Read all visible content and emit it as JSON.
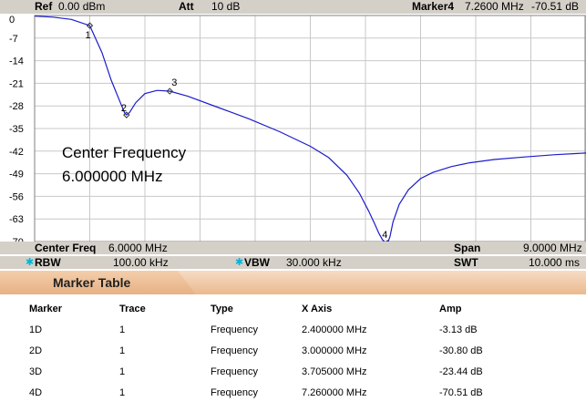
{
  "header": {
    "ref_label": "Ref",
    "ref_value": "0.00 dBm",
    "att_label": "Att",
    "att_value": "10 dB",
    "marker_label": "Marker4",
    "marker_freq": "7.2600 MHz",
    "marker_amp": "-70.51 dB"
  },
  "chart_data": {
    "type": "line",
    "y_ticks": [
      "0",
      "-7",
      "-14",
      "-21",
      "-28",
      "-35",
      "-42",
      "-49",
      "-56",
      "-63",
      "-70"
    ],
    "ylim": [
      -70,
      0
    ],
    "xlim": [
      1.5,
      10.5
    ],
    "x_unit": "MHz",
    "grid": true,
    "series": [
      {
        "color": "#1c1ccc",
        "x": [
          1.5,
          1.8,
          2.1,
          2.4,
          2.6,
          2.75,
          2.9,
          2.97,
          3.0,
          3.05,
          3.15,
          3.3,
          3.5,
          3.705,
          4.0,
          4.5,
          5.0,
          5.5,
          6.0,
          6.3,
          6.6,
          6.8,
          6.95,
          7.05,
          7.12,
          7.18,
          7.22,
          7.26,
          7.3,
          7.35,
          7.45,
          7.6,
          7.8,
          8.0,
          8.3,
          8.6,
          9.0,
          9.5,
          10.0,
          10.5
        ],
        "y": [
          -0.2,
          -0.5,
          -1.2,
          -3.13,
          -11.5,
          -20,
          -27,
          -30.2,
          -30.8,
          -30,
          -27,
          -24.2,
          -23.2,
          -23.44,
          -25,
          -28.5,
          -32,
          -36,
          -40.5,
          -44,
          -49.5,
          -55,
          -60.5,
          -64.5,
          -67.5,
          -69.5,
          -70.2,
          -70.51,
          -68.5,
          -64,
          -58.5,
          -54,
          -50.5,
          -48.6,
          -46.8,
          -45.6,
          -44.6,
          -43.8,
          -43.1,
          -42.6
        ]
      }
    ],
    "markers": [
      {
        "label": "1",
        "x": 2.4,
        "y": -3.13
      },
      {
        "label": "2",
        "x": 3.0,
        "y": -30.8
      },
      {
        "label": "3",
        "x": 3.705,
        "y": -23.44
      },
      {
        "label": "4",
        "x": 7.26,
        "y": -70.51
      }
    ],
    "annotation": {
      "line1": "Center Frequency",
      "line2": "6.000000 MHz"
    }
  },
  "info": {
    "center_label": "Center Freq",
    "center_value": "6.0000 MHz",
    "span_label": "Span",
    "span_value": "9.0000 MHz",
    "rbw_label": "RBW",
    "rbw_value": "100.00 kHz",
    "vbw_label": "VBW",
    "vbw_value": "30.000 kHz",
    "swt_label": "SWT",
    "swt_value": "10.000 ms",
    "dot_symbol": "✱"
  },
  "marker_table": {
    "title": "Marker Table",
    "columns": [
      "Marker",
      "Trace",
      "Type",
      "X Axis",
      "Amp"
    ],
    "rows": [
      [
        "1D",
        "1",
        "Frequency",
        "2.400000 MHz",
        "-3.13 dB"
      ],
      [
        "2D",
        "1",
        "Frequency",
        "3.000000 MHz",
        "-30.80 dB"
      ],
      [
        "3D",
        "1",
        "Frequency",
        "3.705000 MHz",
        "-23.44 dB"
      ],
      [
        "4D",
        "1",
        "Frequency",
        "7.260000 MHz",
        "-70.51 dB"
      ]
    ]
  }
}
